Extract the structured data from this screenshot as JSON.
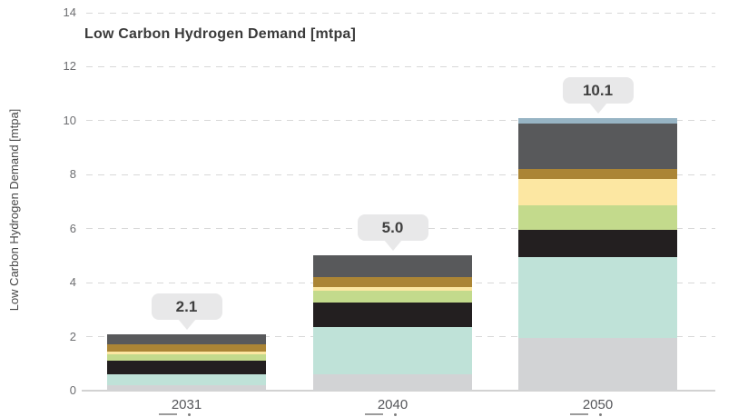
{
  "chart": {
    "title": "Low Carbon Hydrogen Demand [mtpa]",
    "y_axis_title": "Low Carbon Hydrogen Demand [mtpa]"
  },
  "chart_data": {
    "type": "bar",
    "stacked": true,
    "title": "Low Carbon Hydrogen Demand [mtpa]",
    "xlabel": "",
    "ylabel": "Low Carbon Hydrogen Demand [mtpa]",
    "categories": [
      "2031",
      "2040",
      "2050"
    ],
    "totals_labels": [
      "2.1",
      "5.0",
      "10.1"
    ],
    "totals": [
      2.1,
      5.0,
      10.1
    ],
    "ylim": [
      0,
      14
    ],
    "yticks": [
      0,
      2,
      4,
      6,
      8,
      10,
      12,
      14
    ],
    "grid": "horizontal-dashed",
    "legend": "none",
    "series": [
      {
        "name": "segment-light-gray",
        "color": "#d2d3d5",
        "values": [
          0.2,
          0.6,
          1.95
        ]
      },
      {
        "name": "segment-teal",
        "color": "#bfe2d8",
        "values": [
          0.4,
          1.75,
          3.0
        ]
      },
      {
        "name": "segment-black",
        "color": "#231f20",
        "values": [
          0.5,
          0.9,
          1.0
        ]
      },
      {
        "name": "segment-light-green",
        "color": "#c3da8c",
        "values": [
          0.25,
          0.45,
          0.9
        ]
      },
      {
        "name": "segment-pale-yellow",
        "color": "#fce7a2",
        "values": [
          0.1,
          0.15,
          1.0
        ]
      },
      {
        "name": "segment-gold",
        "color": "#ab8535",
        "values": [
          0.25,
          0.35,
          0.35
        ]
      },
      {
        "name": "segment-dark-gray",
        "color": "#58595b",
        "values": [
          0.4,
          0.8,
          1.7
        ]
      },
      {
        "name": "segment-slate-blue",
        "color": "#97b4c4",
        "values": [
          0.0,
          0.0,
          0.2
        ]
      }
    ],
    "style_colors": {
      "bubble_background": "#e8e8e9",
      "bubble_text": "#3f3f3f",
      "gridline": "#d8d8d8",
      "axis_tick_text": "#6d6e71",
      "category_text": "#55565a",
      "title_text": "#3a3a3a"
    }
  }
}
